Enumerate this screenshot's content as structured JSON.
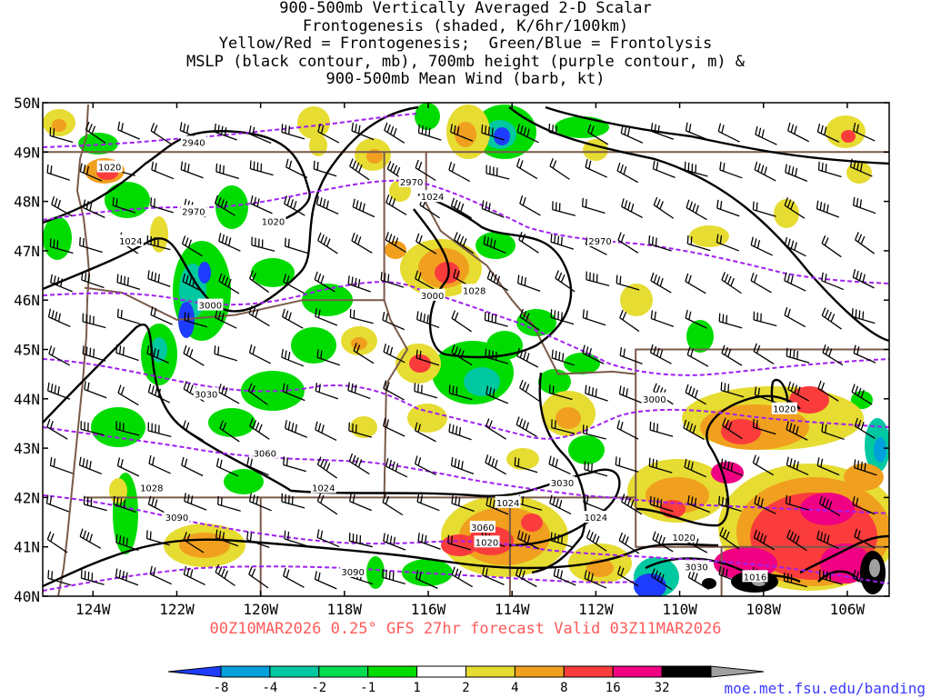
{
  "title": {
    "line1": "900-500mb Vertically Averaged 2-D Scalar",
    "line2": "Frontogenesis (shaded, K/6hr/100km)",
    "line3": "Yellow/Red = Frontogenesis;  Green/Blue = Frontolysis",
    "line4": "MSLP (black contour, mb), 700mb height (purple contour, m) &",
    "line5": "900-500mb Mean Wind (barb, kt)"
  },
  "footer": "00Z10MAR2026 0.25° GFS 27hr forecast Valid 03Z11MAR2026",
  "source": "moe.met.fsu.edu/banding",
  "map": {
    "lon_min": -125.2,
    "lon_max": -105.0,
    "lat_min": 40.0,
    "lat_max": 50.0,
    "lat_ticks": [
      "40N",
      "41N",
      "42N",
      "43N",
      "44N",
      "45N",
      "46N",
      "47N",
      "48N",
      "49N",
      "50N"
    ],
    "lon_ticks": [
      {
        "lon": -124,
        "label": "124W"
      },
      {
        "lon": -122,
        "label": "122W"
      },
      {
        "lon": -120,
        "label": "120W"
      },
      {
        "lon": -118,
        "label": "118W"
      },
      {
        "lon": -116,
        "label": "116W"
      },
      {
        "lon": -114,
        "label": "114W"
      },
      {
        "lon": -112,
        "label": "112W"
      },
      {
        "lon": -110,
        "label": "110W"
      },
      {
        "lon": -108,
        "label": "108W"
      },
      {
        "lon": -106,
        "label": "106W"
      }
    ],
    "mslp_labels": [
      {
        "text": "1020",
        "lon": -123.6,
        "lat": 48.7
      },
      {
        "text": "1024",
        "lon": -123.1,
        "lat": 47.2
      },
      {
        "text": "1020",
        "lon": -119.7,
        "lat": 47.6
      },
      {
        "text": "1024",
        "lon": -115.9,
        "lat": 48.1
      },
      {
        "text": "1028",
        "lon": -114.9,
        "lat": 46.2
      },
      {
        "text": "1028",
        "lon": -122.6,
        "lat": 42.2
      },
      {
        "text": "1024",
        "lon": -118.5,
        "lat": 42.2
      },
      {
        "text": "1024",
        "lon": -114.1,
        "lat": 41.9
      },
      {
        "text": "1020",
        "lon": -114.6,
        "lat": 41.1
      },
      {
        "text": "1024",
        "lon": -112.0,
        "lat": 41.6
      },
      {
        "text": "1020",
        "lon": -109.9,
        "lat": 41.2
      },
      {
        "text": "1016",
        "lon": -108.2,
        "lat": 40.4
      },
      {
        "text": "1020",
        "lon": -107.5,
        "lat": 43.8
      }
    ],
    "height_labels": [
      {
        "text": "2940",
        "lon": -121.6,
        "lat": 49.2
      },
      {
        "text": "2970",
        "lon": -121.6,
        "lat": 47.8
      },
      {
        "text": "2970",
        "lon": -116.4,
        "lat": 48.4
      },
      {
        "text": "2970",
        "lon": -111.9,
        "lat": 47.2
      },
      {
        "text": "3000",
        "lon": -121.2,
        "lat": 45.9
      },
      {
        "text": "3000",
        "lon": -115.9,
        "lat": 46.1
      },
      {
        "text": "3030",
        "lon": -121.3,
        "lat": 44.1
      },
      {
        "text": "3060",
        "lon": -119.9,
        "lat": 42.9
      },
      {
        "text": "3090",
        "lon": -122.0,
        "lat": 41.6
      },
      {
        "text": "3090",
        "lon": -117.8,
        "lat": 40.5
      },
      {
        "text": "3060",
        "lon": -114.7,
        "lat": 41.4
      },
      {
        "text": "3030",
        "lon": -112.8,
        "lat": 42.3
      },
      {
        "text": "3000",
        "lon": -110.6,
        "lat": 44.0
      },
      {
        "text": "3030",
        "lon": -109.6,
        "lat": 40.6
      }
    ]
  },
  "colorbar": {
    "labels": [
      "-8",
      "-4",
      "-2",
      "-1",
      "1",
      "2",
      "4",
      "8",
      "16",
      "32"
    ],
    "colors": [
      "#1e3cff",
      "#00a0dc",
      "#00c8a0",
      "#00dc50",
      "#00dc00",
      "#ffffff",
      "#e6dc32",
      "#f0a01e",
      "#fa3c3c",
      "#f00082",
      "#000000",
      "#a0a0a0"
    ]
  }
}
